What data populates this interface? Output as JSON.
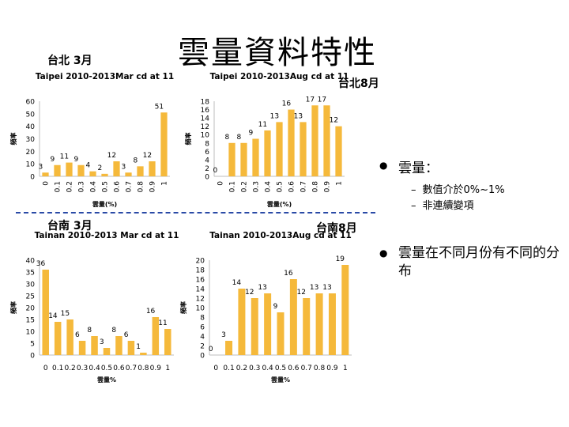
{
  "page": {
    "title": "雲量資料特性",
    "panel_labels": [
      "台北 3月",
      "台北8月",
      "台南 3月",
      "台南8月"
    ]
  },
  "bullets": [
    {
      "text": "雲量：",
      "sub": [
        {
          "marker": "–",
          "text": "數值介於0%~1%"
        },
        {
          "marker": "–",
          "text": "非連續變項"
        }
      ]
    },
    {
      "text": "雲量在不同月份有不同的分布",
      "sub": []
    }
  ],
  "colors": {
    "bar": "#f5b93b",
    "axis": "#bdbdbd",
    "divider": "#2a4aa6"
  },
  "chart_data": [
    {
      "type": "bar",
      "title": "Taipei 2010-2013Mar cd at 11",
      "xlabel": "雲量(%)",
      "ylabel": "頻率",
      "categories": [
        "0",
        "0.1",
        "0.2",
        "0.3",
        "0.4",
        "0.5",
        "0.6",
        "0.7",
        "0.8",
        "0.9",
        "1"
      ],
      "values": [
        3,
        9,
        11,
        9,
        4,
        2,
        12,
        3,
        8,
        12,
        51
      ],
      "yticks": [
        0,
        10,
        20,
        30,
        40,
        50,
        60
      ],
      "ylim": [
        0,
        60
      ],
      "xtick_rotated": true
    },
    {
      "type": "bar",
      "title": "Taipei 2010-2013Aug cd at 11",
      "xlabel": "雲量(%)",
      "ylabel": "頻率",
      "categories": [
        "0",
        "0.1",
        "0.2",
        "0.3",
        "0.4",
        "0.5",
        "0.6",
        "0.7",
        "0.8",
        "0.9",
        "1"
      ],
      "values": [
        0,
        8,
        8,
        9,
        11,
        13,
        16,
        13,
        17,
        17,
        12
      ],
      "yticks": [
        0,
        2,
        4,
        6,
        8,
        10,
        12,
        14,
        16,
        18
      ],
      "ylim": [
        0,
        18
      ],
      "xtick_rotated": true
    },
    {
      "type": "bar",
      "title": "Tainan 2010-2013 Mar cd at 11",
      "xlabel": "雲量%",
      "ylabel": "頻率",
      "categories": [
        "0",
        "0.1",
        "0.2",
        "0.3",
        "0.4",
        "0.5",
        "0.6",
        "0.7",
        "0.8",
        "0.9",
        "1"
      ],
      "values": [
        36,
        14,
        15,
        6,
        8,
        3,
        8,
        6,
        1,
        16,
        11
      ],
      "yticks": [
        0,
        5,
        10,
        15,
        20,
        25,
        30,
        35,
        40
      ],
      "ylim": [
        0,
        40
      ],
      "xtick_rotated": false
    },
    {
      "type": "bar",
      "title": "Tainan 2010-2013Aug cd at 11",
      "xlabel": "雲量%",
      "ylabel": "頻率",
      "categories": [
        "0",
        "0.1",
        "0.2",
        "0.3",
        "0.4",
        "0.5",
        "0.6",
        "0.7",
        "0.8",
        "0.9",
        "1"
      ],
      "values": [
        0,
        3,
        14,
        12,
        13,
        9,
        16,
        12,
        13,
        13,
        19
      ],
      "yticks": [
        0,
        2,
        4,
        6,
        8,
        10,
        12,
        14,
        16,
        18,
        20
      ],
      "ylim": [
        0,
        20
      ],
      "xtick_rotated": false
    }
  ]
}
